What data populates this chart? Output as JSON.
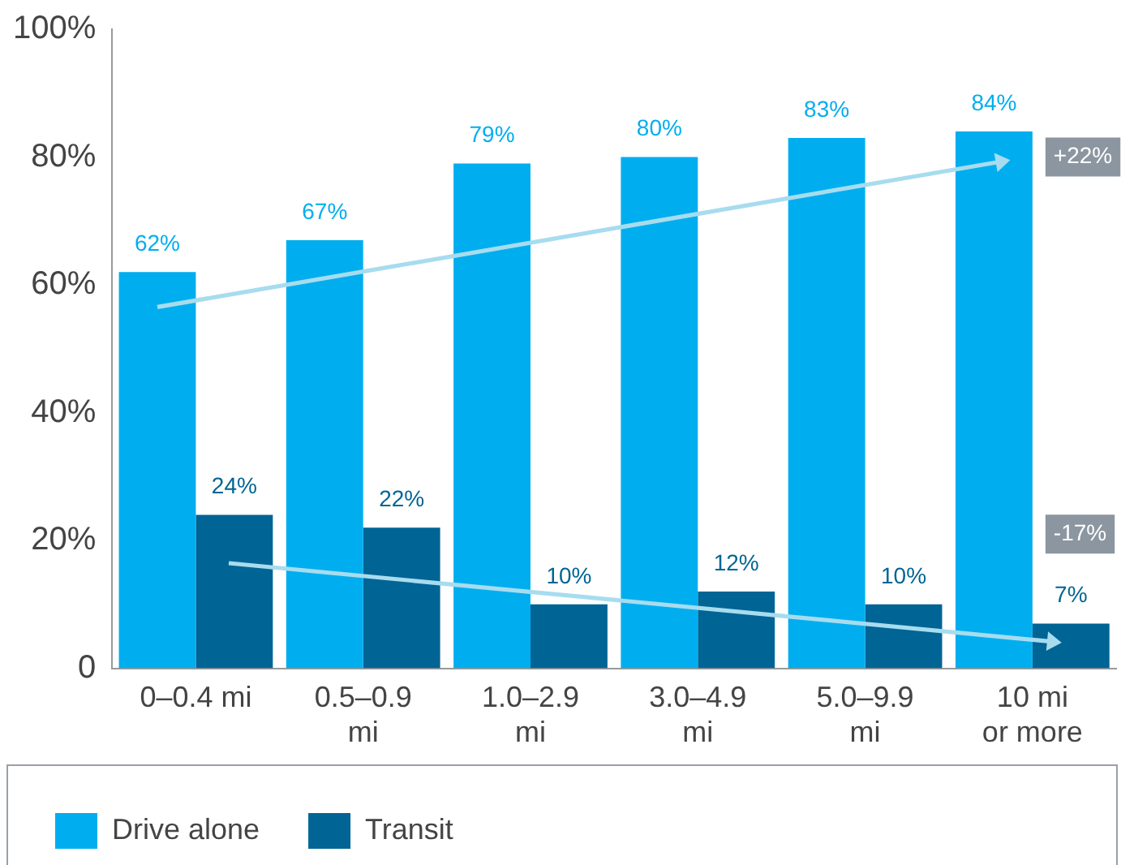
{
  "chart_data": {
    "type": "bar",
    "categories": [
      "0–0.4 mi",
      "0.5–0.9 mi",
      "1.0–2.9 mi",
      "3.0–4.9 mi",
      "5.0–9.9 mi",
      "10 mi or more"
    ],
    "series": [
      {
        "name": "Drive alone",
        "color": "#00aeef",
        "values": [
          62,
          67,
          79,
          80,
          83,
          84
        ],
        "value_labels": [
          "62%",
          "67%",
          "79%",
          "80%",
          "83%",
          "84%"
        ]
      },
      {
        "name": "Transit",
        "color": "#006494",
        "values": [
          24,
          22,
          10,
          12,
          10,
          7
        ],
        "value_labels": [
          "24%",
          "22%",
          "10%",
          "12%",
          "10%",
          "7%"
        ]
      }
    ],
    "ylim": [
      0,
      100
    ],
    "yticks": [
      {
        "value": 0,
        "label": "0"
      },
      {
        "value": 20,
        "label": "20%"
      },
      {
        "value": 40,
        "label": "40%"
      },
      {
        "value": 60,
        "label": "60%"
      },
      {
        "value": 80,
        "label": "80%"
      },
      {
        "value": 100,
        "label": "100%"
      }
    ],
    "annotations": [
      {
        "text": "+22%",
        "x": "10 mi or more",
        "y": 80
      },
      {
        "text": "-17%",
        "x": "10 mi or more",
        "y": 21
      }
    ],
    "grid": false,
    "legend": "bottom"
  }
}
